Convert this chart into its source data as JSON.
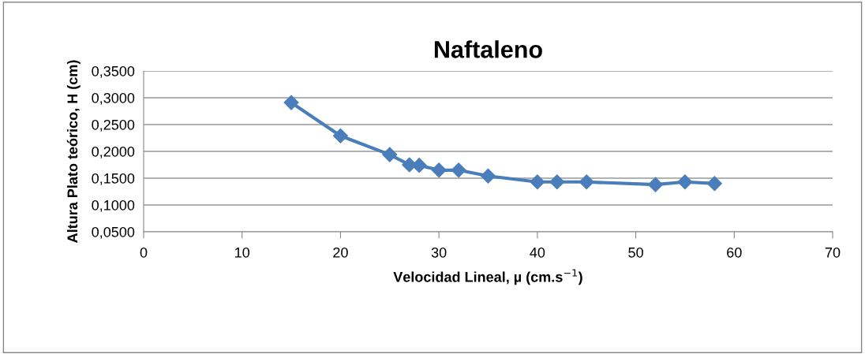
{
  "chart_data": {
    "type": "line",
    "title": "Naftaleno",
    "xlabel": "Velocidad Lineal, µ (cm.s$^{−1}$)",
    "ylabel": "Altura Plato teórico, H (cm)",
    "x": [
      15,
      20,
      25,
      27,
      28,
      30,
      32,
      35,
      40,
      42,
      45,
      52,
      55,
      58
    ],
    "series": [
      {
        "color": "#4a7ebb",
        "values": [
          0.291,
          0.229,
          0.194,
          0.175,
          0.174,
          0.165,
          0.165,
          0.154,
          0.143,
          0.143,
          0.143,
          0.138,
          0.143,
          0.14
        ]
      }
    ],
    "xlim": [
      0,
      70
    ],
    "xticks": [
      0,
      10,
      20,
      30,
      40,
      50,
      60,
      70
    ],
    "ylim": [
      0.05,
      0.35
    ],
    "yticks": [
      {
        "value": 0.05,
        "label": "0,0500"
      },
      {
        "value": 0.1,
        "label": "0,1000"
      },
      {
        "value": 0.15,
        "label": "0,1500"
      },
      {
        "value": 0.2,
        "label": "0,2000"
      },
      {
        "value": 0.25,
        "label": "0,2500"
      },
      {
        "value": 0.3,
        "label": "0,3000"
      },
      {
        "value": 0.35,
        "label": "0,3500"
      }
    ],
    "grid": "y",
    "legend": false,
    "marker": "diamond",
    "line_style": "solid"
  }
}
